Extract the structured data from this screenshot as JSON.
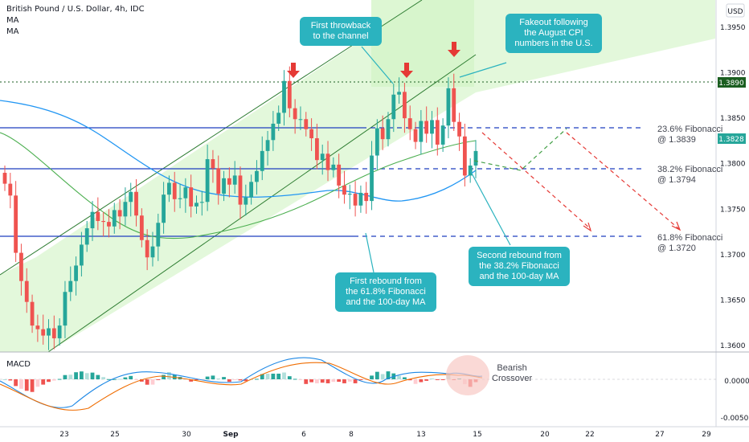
{
  "title": "British Pound / U.S. Dollar, 4h, IDC",
  "indicator_ma1": "MA",
  "indicator_ma2": "MA",
  "macd_label": "MACD",
  "currency": "USD",
  "colors": {
    "up": "#26a69a",
    "down": "#ef5350",
    "channel_fill": "#d4f5c8",
    "ma_fast": "#4caf50",
    "ma_slow": "#2196f3",
    "fib_line": "#1e3fbf",
    "callout": "#2bb3bf",
    "arrow": "#e53935",
    "highlight_label": "#1b5e20"
  },
  "callouts": {
    "throwback": [
      "First throwback",
      "to the channel"
    ],
    "fakeout": [
      "Fakeout following",
      "the August CPI",
      "numbers in the U.S."
    ],
    "rebound1": [
      "First rebound from",
      "the 61.8% Fibonacci",
      "and the 100-day MA"
    ],
    "rebound2": [
      "Second rebound from",
      "the 38.2% Fibonacci",
      "and the 100-day MA"
    ]
  },
  "fib_labels": {
    "f236": [
      "23.6% Fibonacci",
      "@ 1.3839"
    ],
    "f382": [
      "38.2% Fibonacci",
      "@ 1.3794"
    ],
    "f618": [
      "61.8% Fibonacci",
      "@ 1.3720"
    ]
  },
  "macd_note": [
    "Bearish",
    "Crossover"
  ],
  "chart_data": {
    "type": "candlestick",
    "title": "British Pound / U.S. Dollar, 4h, IDC",
    "y_axis": {
      "ticks": [
        "1.3950",
        "1.3900",
        "1.3850",
        "1.3800",
        "1.3750",
        "1.3700",
        "1.3650",
        "1.3600"
      ],
      "highlight": [
        {
          "label": "1.3890",
          "value": 1.389,
          "bg": "#1b5e20"
        },
        {
          "label": "1.3828",
          "value": 1.3828,
          "bg": "#26a69a"
        }
      ]
    },
    "x_axis": {
      "ticks": [
        "23",
        "25",
        "30",
        "Sep",
        "6",
        "8",
        "13",
        "15",
        "20",
        "22",
        "27",
        "29"
      ]
    },
    "macd_axis": {
      "ticks": [
        "0.0000",
        "-0.0050"
      ]
    },
    "levels": {
      "fib_236": 1.3839,
      "fib_382": 1.3794,
      "fib_618": 1.372,
      "resistance": 1.389
    },
    "ohlc_close": [
      1.3778,
      1.3765,
      1.3702,
      1.3671,
      1.3648,
      1.3622,
      1.3618,
      1.3611,
      1.3619,
      1.3608,
      1.3622,
      1.3659,
      1.3671,
      1.3688,
      1.3711,
      1.3729,
      1.3747,
      1.3737,
      1.3736,
      1.3731,
      1.3749,
      1.3742,
      1.3758,
      1.3769,
      1.3743,
      1.3716,
      1.3697,
      1.3709,
      1.3735,
      1.3766,
      1.3779,
      1.3761,
      1.3762,
      1.3774,
      1.3753,
      1.3757,
      1.3758,
      1.3805,
      1.3795,
      1.3767,
      1.3784,
      1.3777,
      1.3787,
      1.3755,
      1.3763,
      1.378,
      1.3792,
      1.3814,
      1.3826,
      1.3844,
      1.3856,
      1.3891,
      1.3861,
      1.3849,
      1.3849,
      1.3838,
      1.3828,
      1.3804,
      1.3811,
      1.3793,
      1.3799,
      1.3776,
      1.3766,
      1.3767,
      1.3754,
      1.3768,
      1.3759,
      1.3809,
      1.3839,
      1.3827,
      1.3849,
      1.3876,
      1.3879,
      1.385,
      1.3838,
      1.3824,
      1.3847,
      1.3833,
      1.3848,
      1.3821,
      1.3842,
      1.3883,
      1.3846,
      1.383,
      1.3787,
      1.3798,
      1.3814
    ],
    "macd": {
      "line": "blue",
      "signal": "orange"
    }
  }
}
